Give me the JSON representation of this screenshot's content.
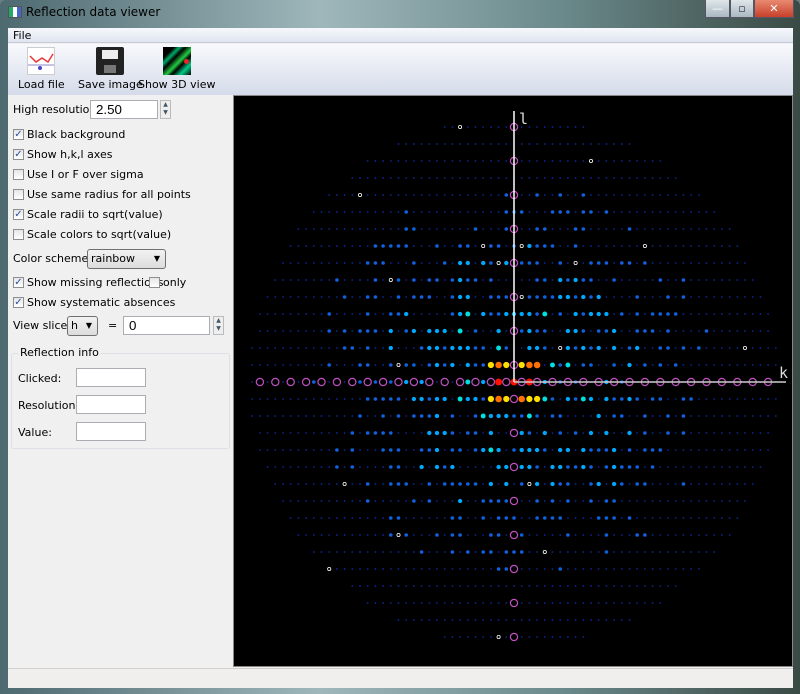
{
  "window": {
    "title": "Reflection data viewer",
    "minimize": "—",
    "maximize": "▫",
    "close": "✕",
    "close_color": "#c7402a"
  },
  "menu": {
    "file": "File"
  },
  "toolbar": {
    "load": "Load file",
    "save": "Save image",
    "show3d": "Show 3D view"
  },
  "controls": {
    "high_res_label": "High resolution:",
    "high_res_value": "2.50",
    "black_bg": {
      "label": "Black background",
      "checked": true
    },
    "show_axes": {
      "label": "Show h,k,l axes",
      "checked": true
    },
    "i_over_sigma": {
      "label": "Use I or F over sigma",
      "checked": false
    },
    "same_radius": {
      "label": "Use same radius for all points",
      "checked": false
    },
    "scale_radii": {
      "label": "Scale radii to sqrt(value)",
      "checked": true
    },
    "scale_colors": {
      "label": "Scale colors to sqrt(value)",
      "checked": false
    },
    "color_scheme_label": "Color scheme:",
    "color_scheme": "rainbow",
    "show_missing": {
      "label": "Show missing reflections",
      "checked": true
    },
    "only": {
      "label": "only",
      "checked": false
    },
    "show_absences": {
      "label": "Show systematic absences",
      "checked": true
    },
    "view_slice_label": "View slice:",
    "slice_axis": "h",
    "equals": "=",
    "slice_value": "0"
  },
  "reflection_info": {
    "title": "Reflection info",
    "clicked_label": "Clicked:",
    "clicked": "",
    "resolution_label": "Resolution:",
    "resolution": "",
    "value_label": "Value:",
    "value": ""
  },
  "plot": {
    "vertical_axis": "l",
    "horizontal_axis": "k",
    "background": "#000000",
    "absence_color": "#c050c0",
    "missing_color": "#ffffff",
    "palette": [
      "#0a2a9a",
      "#1060e0",
      "#00a8ff",
      "#00e0e0",
      "#10e870",
      "#a0ff20",
      "#ffe000",
      "#ff7000",
      "#ff1000"
    ]
  }
}
